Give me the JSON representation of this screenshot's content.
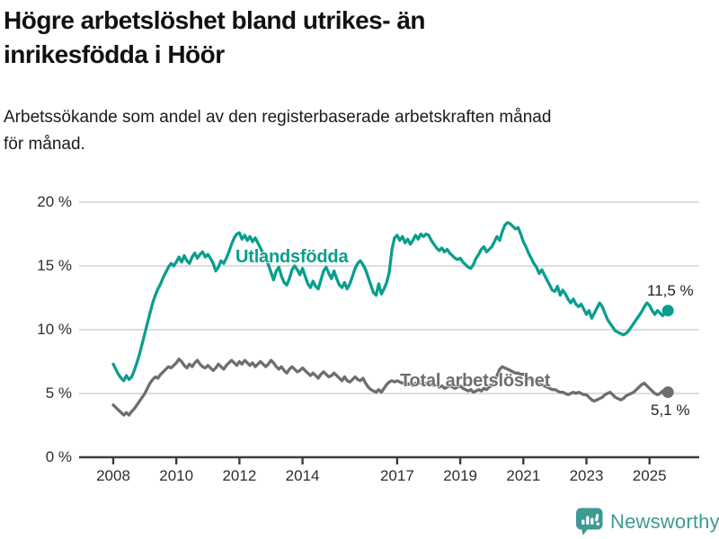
{
  "header": {
    "title_line1": "Högre arbetslöshet bland utrikes- än",
    "title_line2": "inrikesfödda i Höör",
    "subtitle_line1": "Arbetssökande som andel av den registerbaserade arbetskraften månad",
    "subtitle_line2": "för månad."
  },
  "footer": {
    "brand": "Newsworthy",
    "brand_color": "#3d9a93"
  },
  "colors": {
    "background": "#ffffff",
    "grid": "#d8d8d8",
    "axis": "#3d3d3d",
    "axis_text": "#2e2e2e",
    "value_label_text": "#222222",
    "utlandsfodda_teal": "#0a9e8e",
    "total_gray": "#6e6e6e"
  },
  "chart_data": {
    "type": "line",
    "title": "Högre arbetslöshet bland utrikes- än inrikesfödda i Höör",
    "subtitle": "Arbetssökande som andel av den registerbaserade arbetskraften månad för månad.",
    "x_unit": "month",
    "x_start_year": 2008,
    "x_end": "2025-08",
    "ylim": [
      0,
      20
    ],
    "yticks": [
      0,
      5,
      10,
      15,
      20
    ],
    "ytick_labels": [
      "0 %",
      "5 %",
      "10 %",
      "15 %",
      "20 %"
    ],
    "xticks": [
      2008,
      2010,
      2012,
      2014,
      2017,
      2019,
      2021,
      2023,
      2025
    ],
    "grid": "horizontal",
    "legend_position": "inline-on-chart",
    "series": [
      {
        "name": "Utlandsfödda",
        "color": "#0a9e8e",
        "end_value": 11.5,
        "end_label": "11,5 %",
        "values": [
          7.3,
          6.9,
          6.5,
          6.2,
          6.0,
          6.4,
          6.1,
          6.3,
          6.8,
          7.4,
          8.1,
          8.9,
          9.7,
          10.5,
          11.3,
          12.1,
          12.7,
          13.2,
          13.6,
          14.1,
          14.5,
          14.9,
          15.2,
          15.0,
          15.3,
          15.7,
          15.3,
          15.8,
          15.4,
          15.2,
          15.7,
          16.0,
          15.6,
          15.9,
          16.1,
          15.7,
          15.9,
          15.6,
          15.2,
          14.6,
          14.9,
          15.4,
          15.2,
          15.6,
          16.1,
          16.7,
          17.2,
          17.5,
          17.6,
          17.1,
          17.4,
          17.0,
          17.3,
          16.9,
          17.2,
          16.8,
          16.4,
          16.0,
          15.6,
          15.1,
          14.5,
          13.9,
          14.6,
          14.9,
          14.2,
          13.7,
          13.5,
          14.0,
          14.7,
          15.0,
          14.7,
          14.3,
          14.8,
          14.2,
          13.6,
          13.3,
          13.8,
          13.4,
          13.2,
          13.9,
          14.6,
          14.9,
          14.4,
          14.0,
          14.6,
          14.0,
          13.5,
          13.3,
          13.7,
          13.2,
          13.6,
          14.2,
          14.8,
          15.2,
          15.4,
          15.1,
          14.7,
          14.1,
          13.5,
          12.9,
          12.7,
          13.6,
          12.8,
          13.2,
          13.7,
          14.5,
          16.3,
          17.2,
          17.4,
          17.0,
          17.3,
          16.8,
          17.1,
          16.7,
          17.0,
          17.4,
          17.1,
          17.5,
          17.3,
          17.5,
          17.4,
          17.0,
          16.7,
          16.4,
          16.2,
          16.4,
          16.1,
          16.3,
          16.0,
          15.8,
          15.6,
          15.5,
          15.6,
          15.3,
          15.1,
          14.9,
          14.8,
          15.1,
          15.6,
          15.9,
          16.3,
          16.5,
          16.1,
          16.3,
          16.5,
          16.9,
          17.3,
          17.0,
          17.7,
          18.2,
          18.4,
          18.3,
          18.1,
          17.9,
          18.0,
          17.5,
          16.9,
          16.5,
          16.0,
          15.6,
          15.2,
          14.9,
          14.4,
          14.7,
          14.3,
          13.9,
          13.5,
          13.1,
          13.0,
          13.4,
          12.7,
          13.1,
          12.8,
          12.4,
          12.1,
          12.4,
          12.0,
          11.8,
          12.0,
          11.6,
          11.2,
          11.5,
          10.9,
          11.3,
          11.7,
          12.1,
          11.8,
          11.3,
          10.8,
          10.5,
          10.2,
          9.9,
          9.8,
          9.7,
          9.6,
          9.7,
          9.9,
          10.2,
          10.5,
          10.8,
          11.1,
          11.4,
          11.8,
          12.1,
          11.9,
          11.5,
          11.2,
          11.5,
          11.3,
          11.1,
          11.4,
          11.5
        ]
      },
      {
        "name": "Total arbetslöshet",
        "color": "#6e6e6e",
        "end_value": 5.1,
        "end_label": "5,1 %",
        "values": [
          4.1,
          3.9,
          3.7,
          3.5,
          3.3,
          3.5,
          3.3,
          3.6,
          3.8,
          4.1,
          4.4,
          4.7,
          5.0,
          5.4,
          5.8,
          6.1,
          6.3,
          6.2,
          6.5,
          6.7,
          6.9,
          7.1,
          7.0,
          7.2,
          7.4,
          7.7,
          7.5,
          7.2,
          7.0,
          7.3,
          7.1,
          7.4,
          7.6,
          7.3,
          7.1,
          7.0,
          7.2,
          7.0,
          6.8,
          7.0,
          7.3,
          7.1,
          6.9,
          7.2,
          7.4,
          7.6,
          7.4,
          7.2,
          7.5,
          7.3,
          7.6,
          7.4,
          7.2,
          7.4,
          7.1,
          7.3,
          7.5,
          7.3,
          7.1,
          7.3,
          7.6,
          7.4,
          7.1,
          6.9,
          7.1,
          6.8,
          6.6,
          6.9,
          7.1,
          6.9,
          6.7,
          6.8,
          7.0,
          6.8,
          6.6,
          6.4,
          6.6,
          6.4,
          6.2,
          6.5,
          6.7,
          6.5,
          6.3,
          6.4,
          6.6,
          6.4,
          6.2,
          6.0,
          6.3,
          6.0,
          5.9,
          6.1,
          6.3,
          6.1,
          6.0,
          6.2,
          5.8,
          5.5,
          5.3,
          5.2,
          5.1,
          5.3,
          5.1,
          5.4,
          5.7,
          5.9,
          6.0,
          5.9,
          6.0,
          5.9,
          5.8,
          5.9,
          5.7,
          5.8,
          5.6,
          5.8,
          5.9,
          5.8,
          5.7,
          5.8,
          5.9,
          5.8,
          5.6,
          5.7,
          5.5,
          5.6,
          5.4,
          5.5,
          5.6,
          5.5,
          5.4,
          5.5,
          5.6,
          5.4,
          5.3,
          5.2,
          5.3,
          5.1,
          5.2,
          5.3,
          5.2,
          5.4,
          5.3,
          5.5,
          5.6,
          5.9,
          6.4,
          6.9,
          7.1,
          7.0,
          6.9,
          6.8,
          6.7,
          6.6,
          6.6,
          6.5,
          6.5,
          6.4,
          6.2,
          6.1,
          6.0,
          5.9,
          5.8,
          5.7,
          5.6,
          5.5,
          5.4,
          5.3,
          5.3,
          5.2,
          5.1,
          5.1,
          5.0,
          4.9,
          5.0,
          5.1,
          5.0,
          5.1,
          5.0,
          4.9,
          4.9,
          4.7,
          4.5,
          4.4,
          4.5,
          4.6,
          4.7,
          4.9,
          5.0,
          5.1,
          4.9,
          4.7,
          4.6,
          4.5,
          4.6,
          4.8,
          4.9,
          5.0,
          5.1,
          5.3,
          5.5,
          5.7,
          5.8,
          5.6,
          5.4,
          5.2,
          5.0,
          4.9,
          5.0,
          5.2,
          5.1,
          5.1
        ]
      }
    ]
  }
}
